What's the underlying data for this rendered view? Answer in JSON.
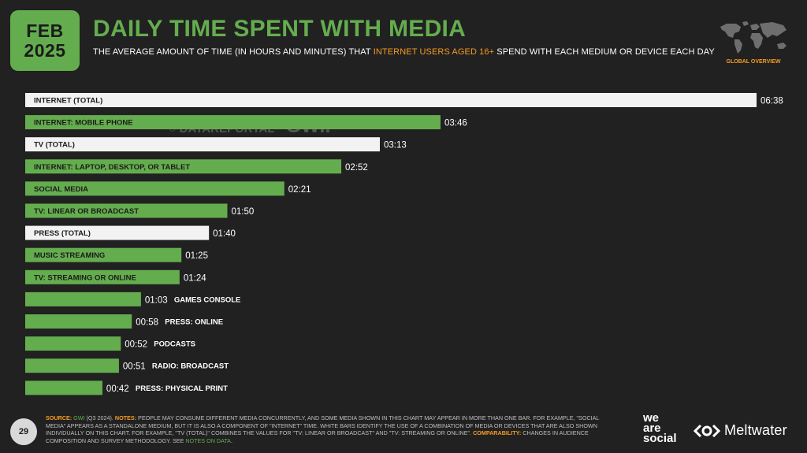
{
  "header": {
    "month": "FEB",
    "year": "2025",
    "title": "DAILY TIME SPENT WITH MEDIA",
    "subtitle_pre": "THE AVERAGE AMOUNT OF TIME (IN HOURS AND MINUTES) THAT ",
    "subtitle_highlight": "INTERNET USERS AGED 16+",
    "subtitle_post": " SPEND WITH EACH MEDIUM OR DEVICE EACH DAY",
    "map_label": "GLOBAL OVERVIEW"
  },
  "watermark": {
    "brand1": "DATAREPORTAL",
    "brand2": "GWI."
  },
  "colors": {
    "green": "#64ad4e",
    "white_bar": "#f2f2f2",
    "orange": "#f59a23",
    "background": "#212121"
  },
  "chart_data": {
    "type": "bar",
    "orientation": "horizontal",
    "title": "DAILY TIME SPENT WITH MEDIA",
    "unit": "hours:minutes",
    "xlim_minutes": [
      0,
      398
    ],
    "categories": [
      "INTERNET (TOTAL)",
      "INTERNET: MOBILE PHONE",
      "TV (TOTAL)",
      "INTERNET: LAPTOP, DESKTOP, OR TABLET",
      "SOCIAL MEDIA",
      "TV: LINEAR OR BROADCAST",
      "PRESS (TOTAL)",
      "MUSIC STREAMING",
      "TV: STREAMING OR ONLINE",
      "GAMES CONSOLE",
      "PRESS: ONLINE",
      "PODCASTS",
      "RADIO: BROADCAST",
      "PRESS: PHYSICAL PRINT"
    ],
    "values_minutes": [
      398,
      226,
      193,
      172,
      141,
      110,
      100,
      85,
      84,
      63,
      58,
      52,
      51,
      42
    ],
    "value_labels": [
      "06:38",
      "03:46",
      "03:13",
      "02:52",
      "02:21",
      "01:50",
      "01:40",
      "01:25",
      "01:24",
      "01:03",
      "00:58",
      "00:52",
      "00:51",
      "00:42"
    ],
    "is_total": [
      true,
      false,
      true,
      false,
      false,
      false,
      true,
      false,
      false,
      false,
      false,
      false,
      false,
      false
    ]
  },
  "footer": {
    "page_number": "29",
    "source_label": "SOURCE:",
    "source_link": "GWI",
    "source_text": " (Q3 2024). ",
    "notes_label": "NOTES:",
    "notes_text": " PEOPLE MAY CONSUME DIFFERENT MEDIA CONCURRENTLY, AND SOME MEDIA SHOWN IN THIS CHART MAY APPEAR IN MORE THAN ONE BAR. FOR EXAMPLE, \"SOCIAL MEDIA\" APPEARS AS A STANDALONE MEDIUM, BUT IT IS ALSO A COMPONENT OF \"INTERNET\" TIME. WHITE BARS IDENTIFY THE USE OF A COMBINATION OF MEDIA OR DEVICES THAT ARE ALSO SHOWN INDIVIDUALLY ON THIS CHART. FOR EXAMPLE, \"TV (TOTAL)\" COMBINES THE VALUES FOR \"TV: LINEAR OR BROADCAST\" AND \"TV: STREAMING OR ONLINE\". ",
    "comparability_label": "COMPARABILITY:",
    "comparability_text": " CHANGES IN AUDIENCE COMPOSITION AND SURVEY METHODOLOGY. SEE ",
    "notes_link": "NOTES ON DATA",
    "end": ".",
    "logo_we": "we",
    "logo_are": "are",
    "logo_social": "social",
    "logo_meltwater": "Meltwater"
  }
}
